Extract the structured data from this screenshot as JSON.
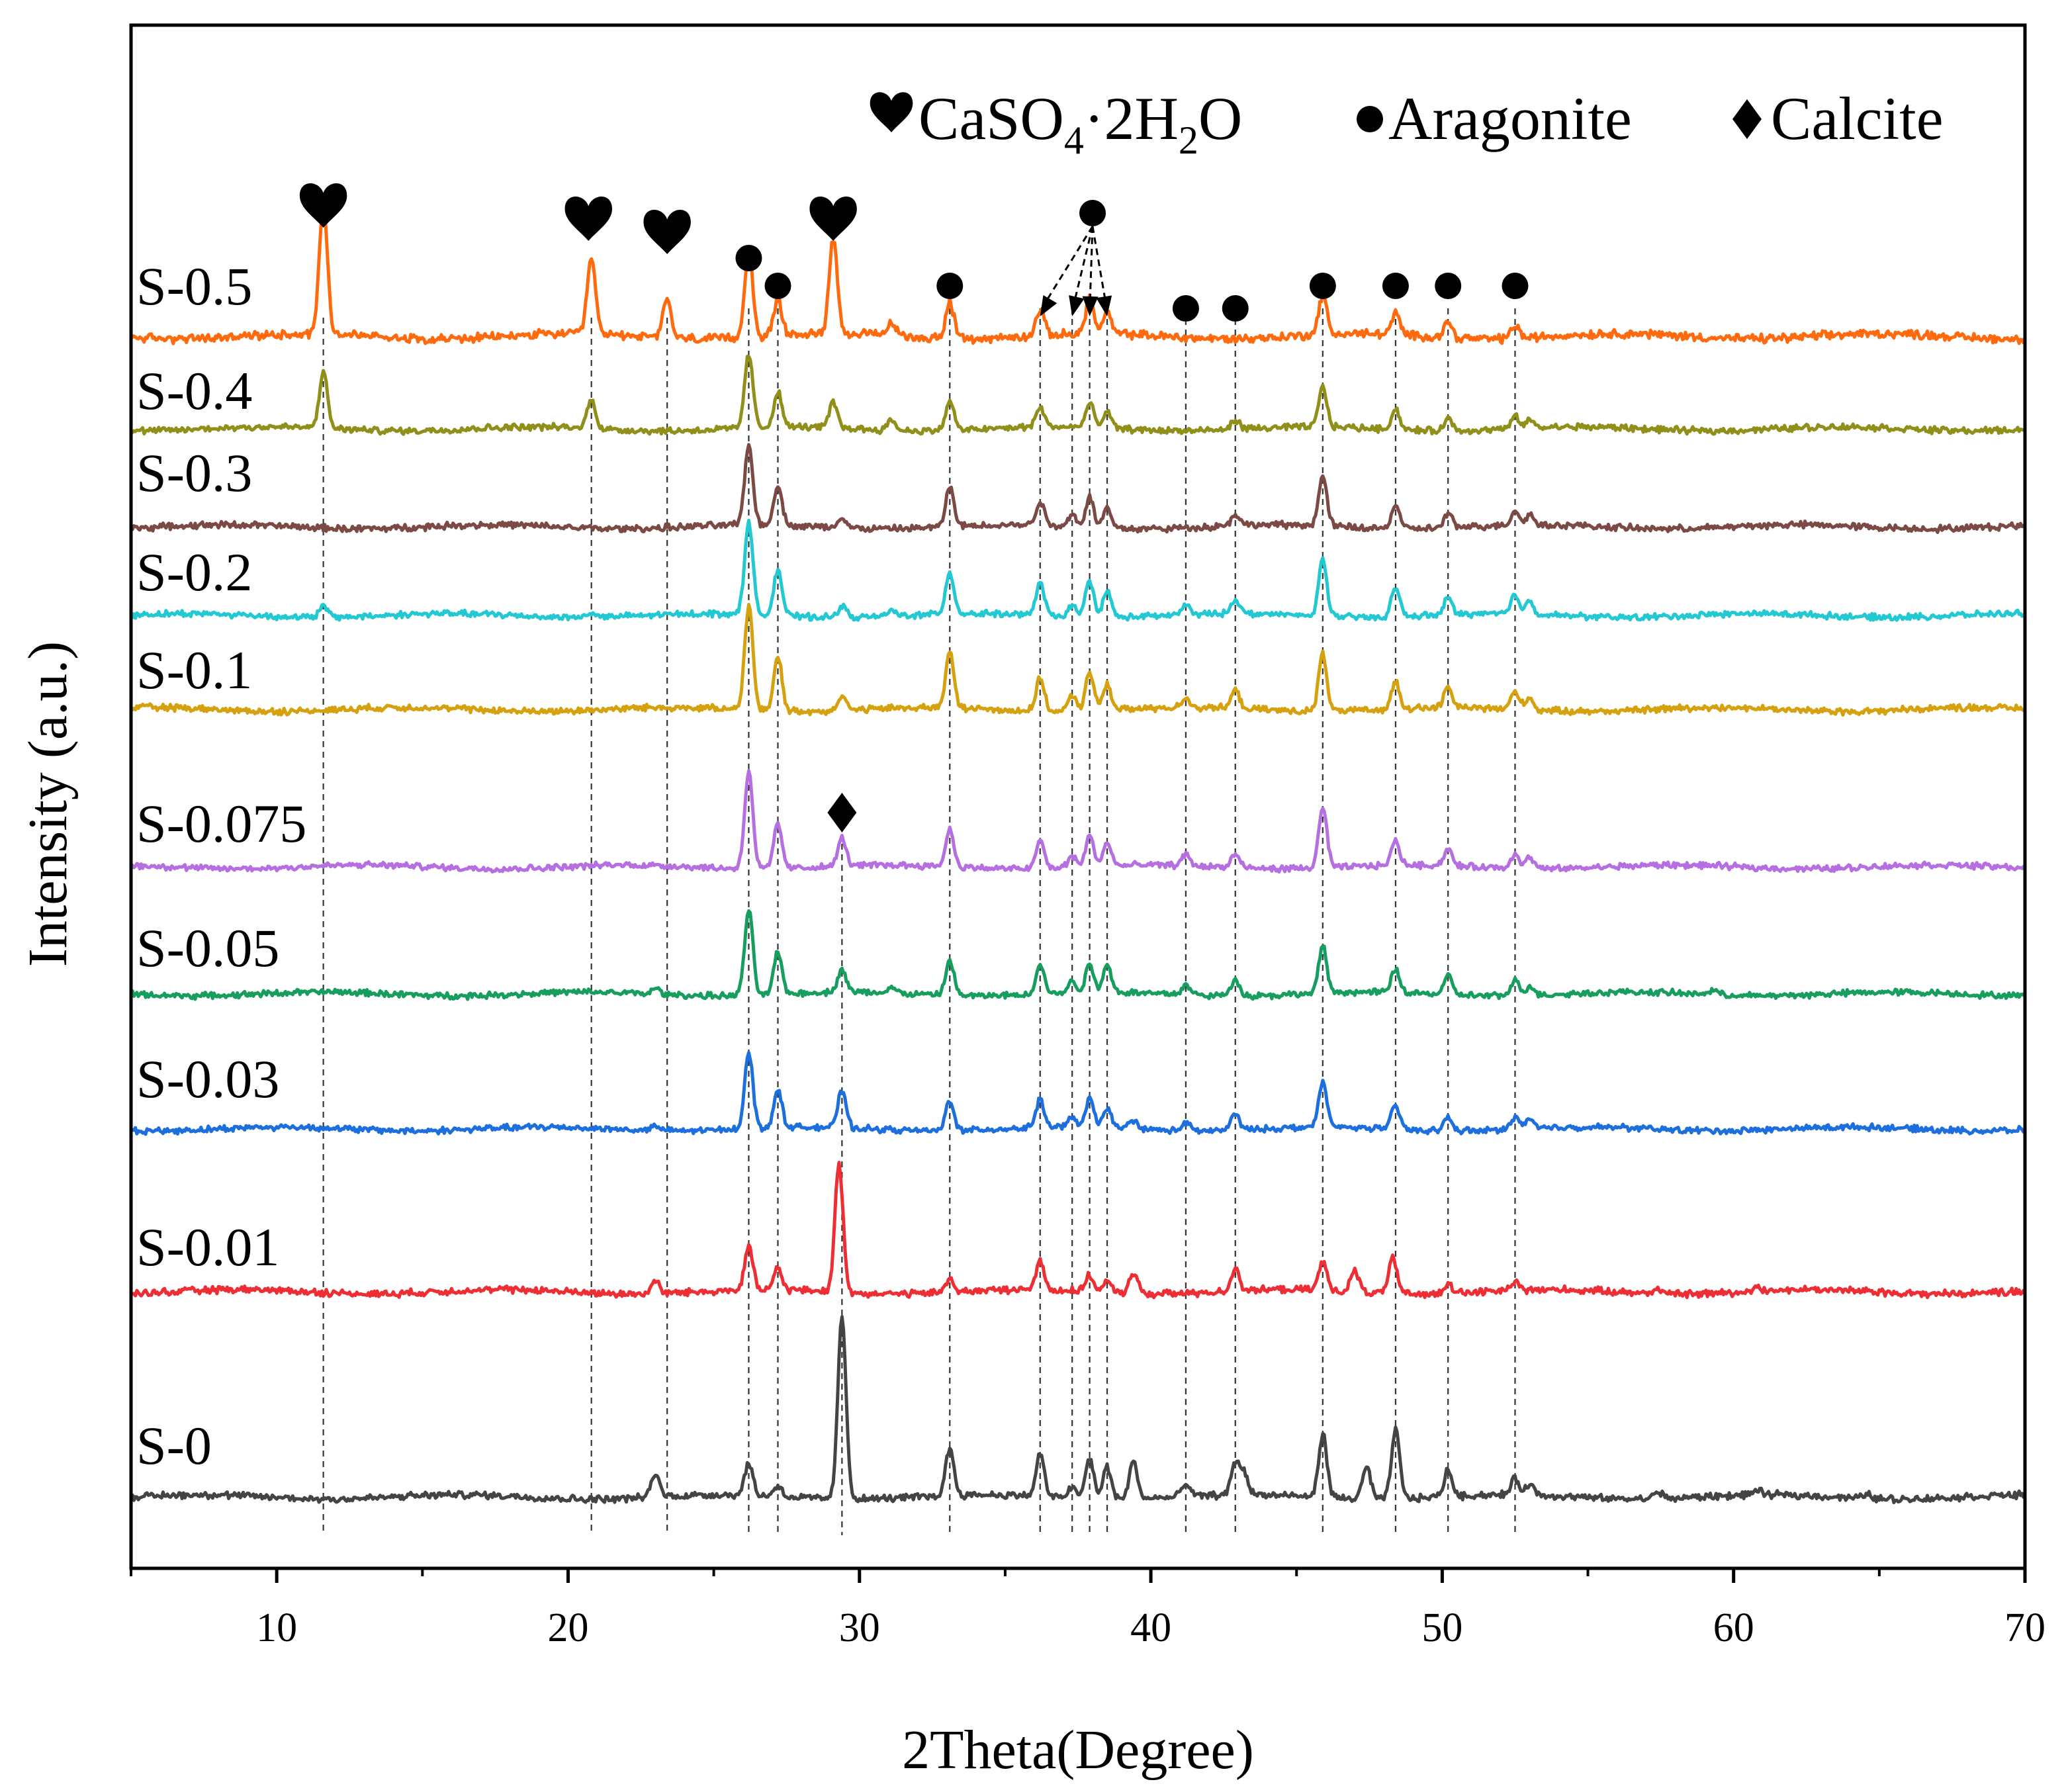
{
  "chart_data": {
    "type": "line",
    "title": "",
    "xlabel": "2Theta(Degree)",
    "ylabel": "Intensity (a.u.)",
    "xlim": [
      5,
      70
    ],
    "x_major_ticks": [
      10,
      20,
      30,
      40,
      50,
      60,
      70
    ],
    "x_minor_ticks": [
      5,
      15,
      25,
      35,
      45,
      55,
      65
    ],
    "legend": {
      "position": "top-right",
      "entries": [
        {
          "symbol": "heart",
          "label": "CaSO4·2H2O",
          "parts": [
            "CaSO",
            "4",
            "·2H",
            "2",
            "O"
          ]
        },
        {
          "symbol": "circle",
          "label": "Aragonite"
        },
        {
          "symbol": "diamond",
          "label": "Calcite"
        }
      ]
    },
    "reference_lines_2theta": [
      11.6,
      20.8,
      23.4,
      26.2,
      27.2,
      29.4,
      33.1,
      36.2,
      37.3,
      37.9,
      38.5,
      41.2,
      42.9,
      45.9,
      48.4,
      50.2,
      52.5
    ],
    "phase_markers": [
      {
        "symbol": "heart",
        "x": 11.6,
        "series": "S-0.5"
      },
      {
        "symbol": "heart",
        "x": 20.7,
        "series": "S-0.5"
      },
      {
        "symbol": "heart",
        "x": 23.4,
        "series": "S-0.5"
      },
      {
        "symbol": "circle",
        "x": 26.2,
        "series": "S-0.5"
      },
      {
        "symbol": "circle",
        "x": 27.2,
        "series": "S-0.5"
      },
      {
        "symbol": "heart",
        "x": 29.1,
        "series": "S-0.5"
      },
      {
        "symbol": "circle",
        "x": 33.1,
        "series": "S-0.5"
      },
      {
        "symbol": "circle",
        "x": 37.5,
        "series": "S-0.5",
        "arrows_to": [
          36.2,
          37.3,
          37.9,
          38.5
        ]
      },
      {
        "symbol": "circle",
        "x": 41.2,
        "series": "S-0.5"
      },
      {
        "symbol": "circle",
        "x": 42.9,
        "series": "S-0.5"
      },
      {
        "symbol": "circle",
        "x": 45.9,
        "series": "S-0.5"
      },
      {
        "symbol": "circle",
        "x": 48.4,
        "series": "S-0.5"
      },
      {
        "symbol": "circle",
        "x": 50.2,
        "series": "S-0.5"
      },
      {
        "symbol": "circle",
        "x": 52.5,
        "series": "S-0.5"
      },
      {
        "symbol": "diamond",
        "x": 29.4,
        "series": "S-0.075"
      }
    ],
    "series": [
      {
        "name": "S-0.5",
        "color": "#ff6a0e",
        "peaks": [
          [
            11.6,
            1.0
          ],
          [
            20.8,
            0.58
          ],
          [
            23.4,
            0.3
          ],
          [
            26.2,
            0.66
          ],
          [
            27.2,
            0.28
          ],
          [
            29.1,
            0.74
          ],
          [
            31.1,
            0.1
          ],
          [
            33.1,
            0.28
          ],
          [
            36.2,
            0.2
          ],
          [
            37.9,
            0.27
          ],
          [
            38.5,
            0.16
          ],
          [
            45.9,
            0.3
          ],
          [
            48.4,
            0.16
          ],
          [
            50.2,
            0.12
          ],
          [
            52.5,
            0.1
          ]
        ]
      },
      {
        "name": "S-0.4",
        "color": "#8f8f1a",
        "peaks": [
          [
            11.6,
            0.56
          ],
          [
            20.8,
            0.3
          ],
          [
            26.2,
            0.74
          ],
          [
            27.2,
            0.35
          ],
          [
            29.1,
            0.25
          ],
          [
            31.1,
            0.1
          ],
          [
            33.1,
            0.3
          ],
          [
            36.2,
            0.2
          ],
          [
            37.9,
            0.24
          ],
          [
            38.5,
            0.16
          ],
          [
            42.9,
            0.1
          ],
          [
            45.9,
            0.4
          ],
          [
            48.4,
            0.2
          ],
          [
            50.2,
            0.12
          ],
          [
            52.5,
            0.12
          ],
          [
            53.0,
            0.08
          ]
        ]
      },
      {
        "name": "S-0.3",
        "color": "#7b4a45",
        "peaks": [
          [
            26.2,
            0.8
          ],
          [
            27.2,
            0.4
          ],
          [
            29.4,
            0.1
          ],
          [
            33.1,
            0.4
          ],
          [
            36.2,
            0.24
          ],
          [
            37.3,
            0.12
          ],
          [
            37.9,
            0.3
          ],
          [
            38.5,
            0.2
          ],
          [
            42.9,
            0.12
          ],
          [
            45.9,
            0.5
          ],
          [
            48.4,
            0.24
          ],
          [
            50.2,
            0.14
          ],
          [
            52.5,
            0.14
          ],
          [
            53.0,
            0.1
          ]
        ]
      },
      {
        "name": "S-0.2",
        "color": "#22c8d2",
        "peaks": [
          [
            11.6,
            0.12
          ],
          [
            20.8,
            0.05
          ],
          [
            26.2,
            1.0
          ],
          [
            27.2,
            0.5
          ],
          [
            29.4,
            0.12
          ],
          [
            31.1,
            0.06
          ],
          [
            33.1,
            0.45
          ],
          [
            36.2,
            0.36
          ],
          [
            37.3,
            0.12
          ],
          [
            37.9,
            0.4
          ],
          [
            38.5,
            0.28
          ],
          [
            41.2,
            0.1
          ],
          [
            42.9,
            0.16
          ],
          [
            45.9,
            0.62
          ],
          [
            48.4,
            0.32
          ],
          [
            50.2,
            0.18
          ],
          [
            52.5,
            0.2
          ],
          [
            53.0,
            0.14
          ]
        ]
      },
      {
        "name": "S-0.1",
        "color": "#d6a10e",
        "peaks": [
          [
            26.2,
            1.05
          ],
          [
            27.2,
            0.55
          ],
          [
            29.4,
            0.14
          ],
          [
            33.1,
            0.55
          ],
          [
            36.2,
            0.33
          ],
          [
            37.3,
            0.15
          ],
          [
            37.9,
            0.4
          ],
          [
            38.5,
            0.27
          ],
          [
            41.2,
            0.1
          ],
          [
            42.9,
            0.18
          ],
          [
            45.9,
            0.58
          ],
          [
            48.4,
            0.28
          ],
          [
            50.2,
            0.2
          ],
          [
            52.5,
            0.18
          ],
          [
            53.0,
            0.12
          ]
        ]
      },
      {
        "name": "S-0.075",
        "color": "#b56fe0",
        "peaks": [
          [
            26.2,
            1.05
          ],
          [
            27.2,
            0.48
          ],
          [
            29.4,
            0.3
          ],
          [
            33.1,
            0.4
          ],
          [
            36.2,
            0.3
          ],
          [
            37.3,
            0.12
          ],
          [
            37.9,
            0.33
          ],
          [
            38.5,
            0.25
          ],
          [
            41.2,
            0.12
          ],
          [
            42.9,
            0.15
          ],
          [
            45.9,
            0.65
          ],
          [
            48.4,
            0.26
          ],
          [
            50.2,
            0.18
          ],
          [
            52.5,
            0.16
          ],
          [
            53.0,
            0.12
          ]
        ]
      },
      {
        "name": "S-0.05",
        "color": "#179e5e",
        "peaks": [
          [
            23.0,
            0.06
          ],
          [
            26.2,
            0.92
          ],
          [
            27.2,
            0.45
          ],
          [
            29.4,
            0.25
          ],
          [
            31.1,
            0.06
          ],
          [
            33.1,
            0.38
          ],
          [
            36.2,
            0.33
          ],
          [
            37.3,
            0.12
          ],
          [
            37.9,
            0.3
          ],
          [
            38.5,
            0.3
          ],
          [
            41.2,
            0.1
          ],
          [
            42.9,
            0.18
          ],
          [
            45.9,
            0.5
          ],
          [
            48.4,
            0.25
          ],
          [
            50.2,
            0.2
          ],
          [
            52.5,
            0.16
          ],
          [
            53.0,
            0.1
          ],
          [
            59.3,
            0.05
          ]
        ]
      },
      {
        "name": "S-0.03",
        "color": "#1c6fdc",
        "peaks": [
          [
            23.0,
            0.05
          ],
          [
            26.2,
            0.82
          ],
          [
            27.2,
            0.4
          ],
          [
            29.4,
            0.4
          ],
          [
            33.1,
            0.33
          ],
          [
            36.2,
            0.3
          ],
          [
            37.3,
            0.1
          ],
          [
            37.9,
            0.3
          ],
          [
            38.5,
            0.22
          ],
          [
            39.4,
            0.1
          ],
          [
            41.2,
            0.08
          ],
          [
            42.9,
            0.18
          ],
          [
            45.9,
            0.48
          ],
          [
            48.4,
            0.25
          ],
          [
            50.2,
            0.14
          ],
          [
            52.5,
            0.14
          ],
          [
            53.0,
            0.1
          ]
        ]
      },
      {
        "name": "S-0.01",
        "color": "#ee2e35",
        "peaks": [
          [
            23.0,
            0.12
          ],
          [
            26.2,
            0.4
          ],
          [
            27.2,
            0.2
          ],
          [
            29.3,
            1.2
          ],
          [
            33.1,
            0.13
          ],
          [
            36.2,
            0.28
          ],
          [
            37.9,
            0.15
          ],
          [
            38.5,
            0.1
          ],
          [
            39.4,
            0.2
          ],
          [
            42.9,
            0.22
          ],
          [
            45.9,
            0.27
          ],
          [
            47.0,
            0.2
          ],
          [
            48.3,
            0.33
          ],
          [
            50.2,
            0.1
          ],
          [
            52.5,
            0.08
          ],
          [
            57.4,
            0.05
          ],
          [
            60.8,
            0.04
          ]
        ]
      },
      {
        "name": "S-0",
        "color": "#444444",
        "peaks": [
          [
            23.0,
            0.22
          ],
          [
            26.2,
            0.3
          ],
          [
            27.2,
            0.1
          ],
          [
            29.4,
            1.7
          ],
          [
            33.1,
            0.45
          ],
          [
            36.2,
            0.4
          ],
          [
            37.3,
            0.1
          ],
          [
            37.9,
            0.38
          ],
          [
            38.5,
            0.3
          ],
          [
            39.4,
            0.35
          ],
          [
            41.2,
            0.12
          ],
          [
            42.9,
            0.3
          ],
          [
            43.2,
            0.2
          ],
          [
            45.9,
            0.6
          ],
          [
            47.4,
            0.3
          ],
          [
            48.4,
            0.65
          ],
          [
            50.2,
            0.25
          ],
          [
            52.5,
            0.15
          ],
          [
            53.0,
            0.1
          ],
          [
            57.4,
            0.07
          ],
          [
            60.8,
            0.04
          ],
          [
            64.6,
            0.04
          ]
        ]
      }
    ]
  }
}
